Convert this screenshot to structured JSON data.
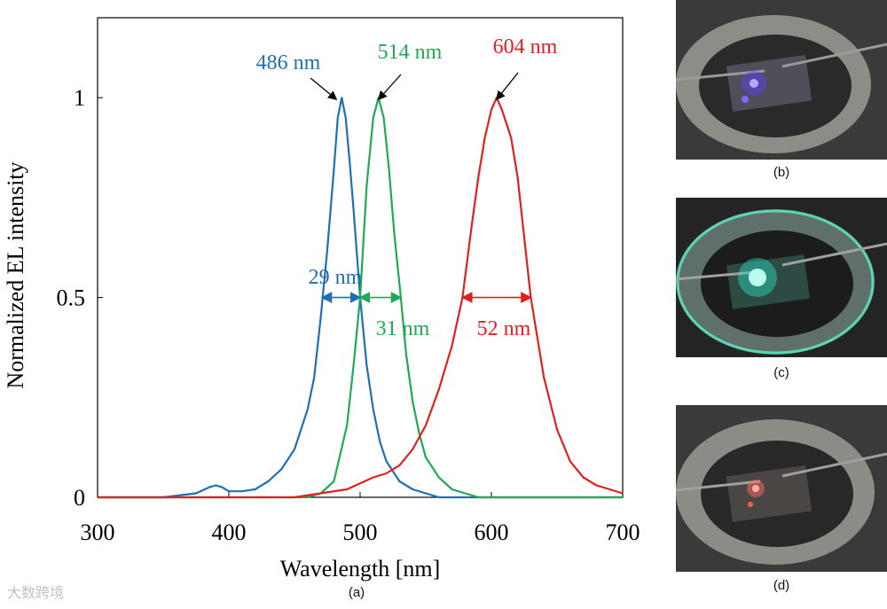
{
  "chart_data": {
    "type": "line",
    "xlabel": "Wavelength [nm]",
    "ylabel": "Normalized EL intensity",
    "xlim": [
      300,
      700
    ],
    "ylim": [
      0,
      1.2
    ],
    "xticks": [
      300,
      400,
      500,
      600,
      700
    ],
    "yticks": [
      0,
      0.5,
      1
    ],
    "ytick_labels": [
      "0",
      "0.5",
      "1"
    ],
    "grid": false,
    "series": [
      {
        "color": "#1f6fb5",
        "peak_label": "486 nm",
        "fwhm_label": "29 nm",
        "fwhm_range": [
          471,
          500
        ],
        "x": [
          300,
          350,
          375,
          385,
          390,
          395,
          400,
          410,
          420,
          430,
          440,
          450,
          460,
          465,
          470,
          475,
          480,
          483,
          486,
          489,
          492,
          495,
          500,
          505,
          510,
          515,
          520,
          530,
          540,
          550,
          560,
          580,
          600,
          650,
          700
        ],
        "y": [
          0.0,
          0.0,
          0.01,
          0.025,
          0.03,
          0.025,
          0.015,
          0.015,
          0.02,
          0.04,
          0.07,
          0.12,
          0.22,
          0.3,
          0.45,
          0.62,
          0.82,
          0.95,
          1.0,
          0.95,
          0.84,
          0.72,
          0.5,
          0.33,
          0.22,
          0.14,
          0.09,
          0.04,
          0.02,
          0.01,
          0.0,
          0.0,
          0.0,
          0.0,
          0.0
        ]
      },
      {
        "color": "#1faa55",
        "peak_label": "514 nm",
        "fwhm_label": "31 nm",
        "fwhm_range": [
          500,
          531
        ],
        "x": [
          300,
          460,
          470,
          480,
          490,
          495,
          500,
          505,
          510,
          514,
          518,
          522,
          526,
          531,
          535,
          540,
          545,
          550,
          560,
          570,
          580,
          590,
          600,
          650,
          700
        ],
        "y": [
          0.0,
          0.0,
          0.01,
          0.04,
          0.18,
          0.33,
          0.5,
          0.78,
          0.95,
          1.0,
          0.95,
          0.82,
          0.66,
          0.5,
          0.36,
          0.24,
          0.16,
          0.1,
          0.05,
          0.02,
          0.01,
          0.0,
          0.0,
          0.0,
          0.0
        ]
      },
      {
        "color": "#e02020",
        "peak_label": "604 nm",
        "fwhm_label": "52 nm",
        "fwhm_range": [
          578,
          630
        ],
        "x": [
          300,
          450,
          470,
          480,
          490,
          500,
          510,
          520,
          530,
          540,
          550,
          560,
          570,
          578,
          585,
          590,
          595,
          600,
          604,
          608,
          615,
          620,
          630,
          640,
          650,
          660,
          670,
          680,
          690,
          700
        ],
        "y": [
          0.0,
          0.0,
          0.01,
          0.015,
          0.02,
          0.035,
          0.05,
          0.06,
          0.08,
          0.12,
          0.18,
          0.27,
          0.38,
          0.5,
          0.68,
          0.8,
          0.9,
          0.97,
          1.0,
          0.97,
          0.9,
          0.8,
          0.5,
          0.3,
          0.17,
          0.09,
          0.05,
          0.03,
          0.02,
          0.01
        ]
      }
    ]
  },
  "figure": {
    "caption_a": "(a)",
    "caption_b": "(b)",
    "caption_c": "(c)",
    "caption_d": "(d)",
    "watermark": "大数跨境"
  }
}
